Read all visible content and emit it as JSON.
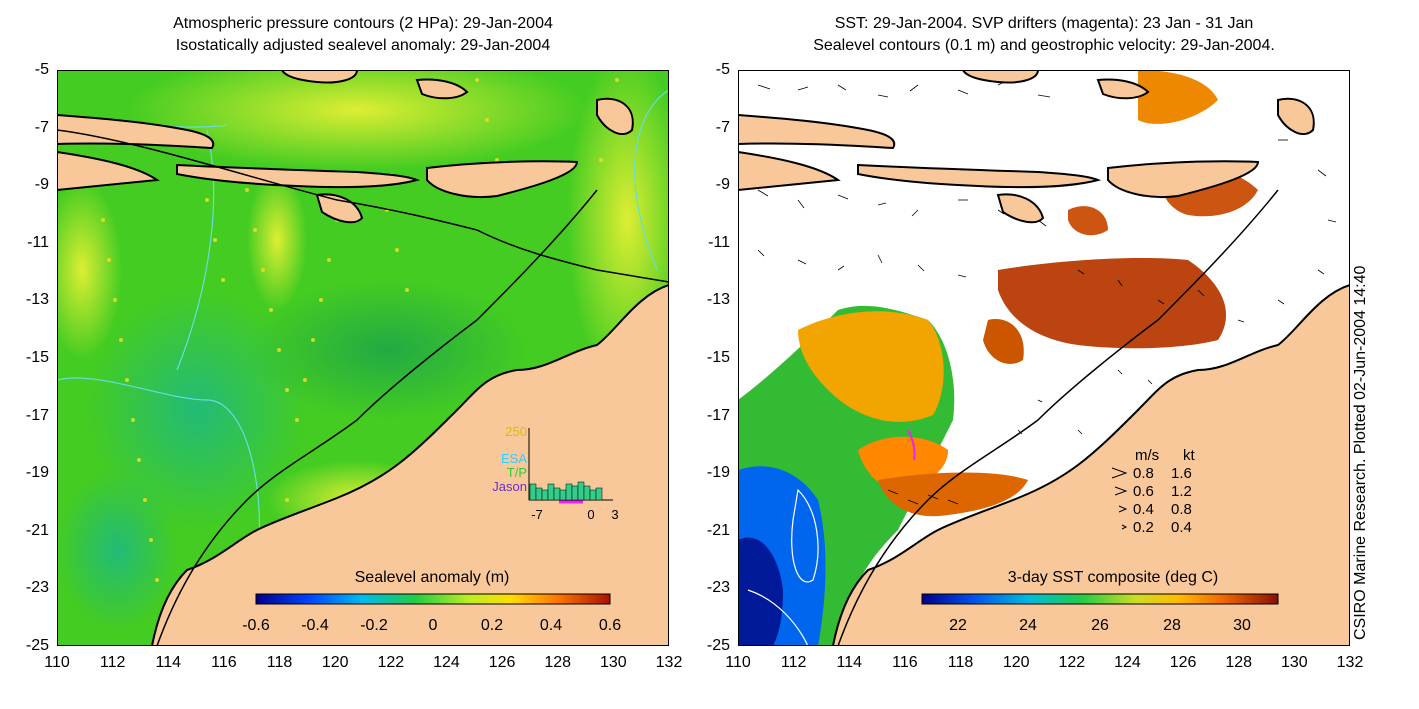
{
  "left_panel": {
    "title_line1": "Atmospheric pressure contours (2 HPa): 29-Jan-2004",
    "title_line2": "Isostatically adjusted sealevel anomaly: 29-Jan-2004",
    "colorbar_label": "Sealevel anomaly (m)",
    "colorbar_ticks": [
      "-0.6",
      "-0.4",
      "-0.2",
      "0",
      "0.2",
      "0.4",
      "0.6"
    ],
    "inset": {
      "y_max_label": "250",
      "legend": [
        {
          "label": "ESA",
          "color": "#33ccff"
        },
        {
          "label": "T/P",
          "color": "#33cc33"
        },
        {
          "label": "Jason",
          "color": "#6633cc"
        }
      ],
      "x_labels": [
        "-7",
        "0",
        "3"
      ]
    }
  },
  "right_panel": {
    "title_line1": "SST: 29-Jan-2004. SVP drifters (magenta): 23 Jan - 31 Jan",
    "title_line2": "Sealevel contours (0.1 m) and geostrophic velocity: 29-Jan-2004.",
    "colorbar_label": "3-day SST composite (deg C)",
    "colorbar_ticks": [
      "22",
      "24",
      "26",
      "28",
      "30"
    ],
    "velocity_key": {
      "header_ms": "m/s",
      "header_kt": "kt",
      "rows": [
        {
          "ms": "0.8",
          "kt": "1.6"
        },
        {
          "ms": "0.6",
          "kt": "1.2"
        },
        {
          "ms": "0.4",
          "kt": "0.8"
        },
        {
          "ms": "0.2",
          "kt": "0.4"
        }
      ]
    }
  },
  "axes": {
    "lat_ticks": [
      "-5",
      "-7",
      "-9",
      "-11",
      "-13",
      "-15",
      "-17",
      "-19",
      "-21",
      "-23",
      "-25"
    ],
    "lon_ticks": [
      "110",
      "112",
      "114",
      "116",
      "118",
      "120",
      "122",
      "124",
      "126",
      "128",
      "130",
      "132"
    ],
    "lon_range": [
      110,
      132
    ],
    "lat_range": [
      -25,
      -5
    ]
  },
  "credit": "CSIRO Marine Research. Plotted 02-Jun-2004 14:40",
  "colors": {
    "land": "#f9c89a",
    "ocean_green": "#44cc22",
    "anomaly_low": "#00008b",
    "anomaly_high": "#aa1100"
  }
}
